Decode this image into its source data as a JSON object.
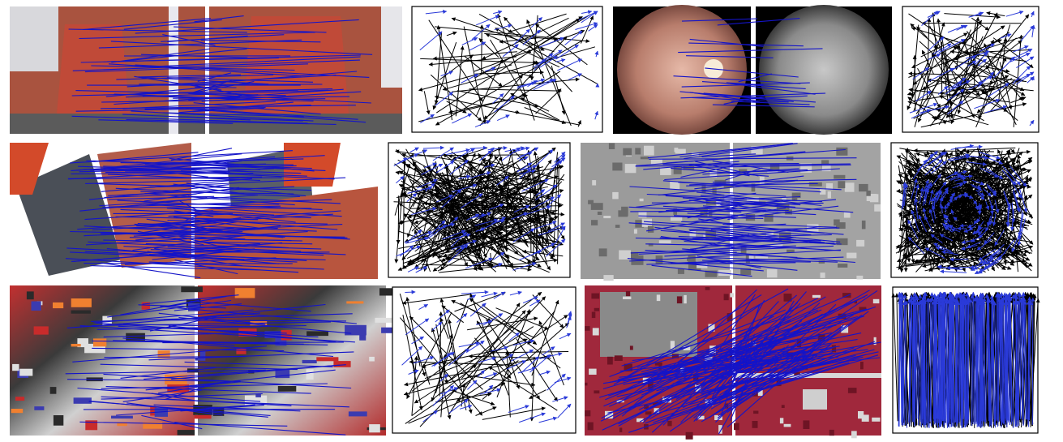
{
  "figure": {
    "caption": "",
    "colors": {
      "inlier_match": "#1414c8",
      "outlier_vector": "#000000",
      "inlier_vector": "#2a3ad8",
      "panel_border": "#000000",
      "background": "#ffffff"
    },
    "rows": [
      {
        "row": 1,
        "cells": [
          {
            "kind": "image-pair",
            "content": "fountain-building",
            "left_image": "red-stone-fountain-left-view",
            "right_image": "red-stone-fountain-right-view",
            "match_count": 70,
            "match_direction": "horizontal"
          },
          {
            "kind": "vector-field",
            "outlier_vectors": 60,
            "inlier_vectors": 45
          },
          {
            "kind": "image-pair",
            "content": "retina",
            "left_image": "retina-color-fundus",
            "right_image": "retina-fluorescein-angiogram",
            "match_count": 22,
            "match_direction": "horizontal"
          },
          {
            "kind": "vector-field",
            "outlier_vectors": 90,
            "inlier_vectors": 50
          }
        ]
      },
      {
        "row": 2,
        "cells": [
          {
            "kind": "image-pair",
            "content": "rotated-building-model",
            "left_image": "house-model-rotated-left",
            "right_image": "house-model-rotated-right",
            "match_count": 120,
            "match_direction": "horizontal"
          },
          {
            "kind": "vector-field",
            "outlier_vectors": 260,
            "inlier_vectors": 90
          },
          {
            "kind": "image-pair",
            "content": "aerial-grayscale",
            "left_image": "city-aerial-gray-left",
            "right_image": "city-aerial-gray-right",
            "match_count": 95,
            "match_direction": "horizontal"
          },
          {
            "kind": "vector-field",
            "outlier_vectors": 420,
            "inlier_vectors": 160
          }
        ]
      },
      {
        "row": 3,
        "cells": [
          {
            "kind": "image-pair",
            "content": "graffiti",
            "left_image": "graffiti-wall-left",
            "right_image": "graffiti-wall-right",
            "match_count": 65,
            "match_direction": "horizontal"
          },
          {
            "kind": "vector-field",
            "outlier_vectors": 70,
            "inlier_vectors": 60
          },
          {
            "kind": "image-pair",
            "content": "infrared-satellite",
            "left_image": "false-color-infrared-left",
            "right_image": "false-color-infrared-right",
            "match_count": 110,
            "match_direction": "diagonal"
          },
          {
            "kind": "vector-field",
            "outlier_vectors": 260,
            "inlier_vectors": 220
          }
        ]
      }
    ]
  }
}
